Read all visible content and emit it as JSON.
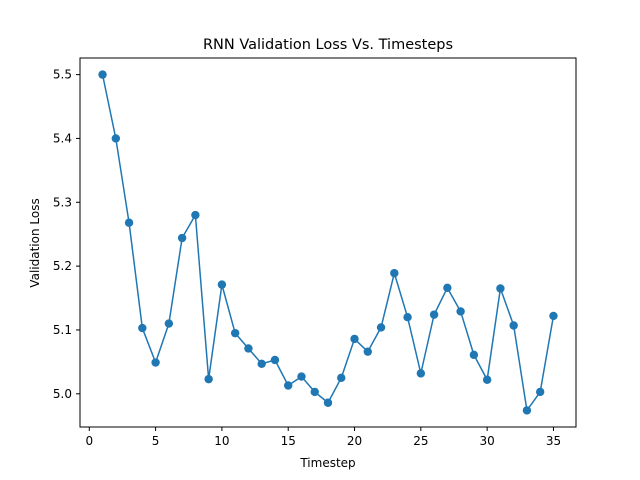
{
  "chart_data": {
    "type": "line",
    "title": "RNN Validation Loss Vs. Timesteps",
    "xlabel": "Timestep",
    "ylabel": "Validation Loss",
    "xlim": [
      -0.7,
      36.7
    ],
    "ylim": [
      4.948,
      5.526
    ],
    "xticks": [
      0,
      5,
      10,
      15,
      20,
      25,
      30,
      35
    ],
    "yticks": [
      5.0,
      5.1,
      5.2,
      5.3,
      5.4,
      5.5
    ],
    "ytick_labels": [
      "5.0",
      "5.1",
      "5.2",
      "5.3",
      "5.4",
      "5.5"
    ],
    "grid": false,
    "color": "#1f77b4",
    "markers": true,
    "series": [
      {
        "x": [
          1,
          2,
          3,
          4,
          5,
          6,
          7,
          8,
          9,
          10,
          11,
          12,
          13,
          14,
          15,
          16,
          17,
          18,
          19,
          20,
          21,
          22,
          23,
          24,
          25,
          26,
          27,
          28,
          29,
          30,
          31,
          32,
          33,
          34,
          35
        ],
        "y": [
          5.5,
          5.4,
          5.268,
          5.103,
          5.049,
          5.11,
          5.244,
          5.28,
          5.023,
          5.171,
          5.095,
          5.071,
          5.047,
          5.053,
          5.013,
          5.027,
          5.003,
          4.986,
          5.025,
          5.086,
          5.066,
          5.104,
          5.189,
          5.12,
          5.032,
          5.124,
          5.166,
          5.129,
          5.061,
          5.022,
          5.165,
          5.107,
          4.974,
          5.003,
          5.122
        ]
      }
    ]
  }
}
